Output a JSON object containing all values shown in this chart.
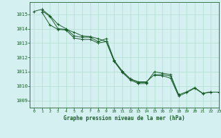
{
  "title": "Graphe pression niveau de la mer (hPa)",
  "background_color": "#d4f0f0",
  "grid_color": "#b0ddd0",
  "line_color": "#1a5c2a",
  "xlim": [
    -0.5,
    23
  ],
  "ylim": [
    1008.5,
    1015.85
  ],
  "yticks": [
    1009,
    1010,
    1011,
    1012,
    1013,
    1014,
    1015
  ],
  "xticks": [
    0,
    1,
    2,
    3,
    4,
    5,
    6,
    7,
    8,
    9,
    10,
    11,
    12,
    13,
    14,
    15,
    16,
    17,
    18,
    19,
    20,
    21,
    22,
    23
  ],
  "series": [
    [
      1015.2,
      1015.35,
      1014.9,
      1014.3,
      1014.0,
      1013.5,
      1013.4,
      1013.4,
      1013.1,
      1013.3,
      1011.8,
      1011.0,
      1010.5,
      1010.3,
      1010.3,
      1010.8,
      1010.8,
      1010.7,
      1009.4,
      1009.6,
      1009.9,
      1009.5,
      1009.6,
      null
    ],
    [
      null,
      1015.25,
      1014.85,
      1014.0,
      1013.95,
      1013.75,
      1013.5,
      1013.45,
      1013.3,
      1013.1,
      1011.75,
      1011.05,
      1010.5,
      1010.25,
      1010.25,
      1011.0,
      1010.9,
      1010.8,
      1009.4,
      null,
      null,
      null,
      null,
      null
    ],
    [
      null,
      1015.15,
      1014.25,
      1013.95,
      1013.9,
      1013.35,
      1013.25,
      1013.25,
      1013.0,
      1013.1,
      1011.7,
      1010.95,
      1010.42,
      1010.18,
      1010.18,
      null,
      null,
      null,
      null,
      null,
      null,
      null,
      null,
      null
    ],
    [
      null,
      null,
      null,
      null,
      null,
      null,
      null,
      null,
      null,
      null,
      null,
      null,
      null,
      null,
      null,
      1010.75,
      1010.72,
      1010.55,
      1009.3,
      1009.55,
      1009.85,
      1009.48,
      1009.58,
      1009.58
    ]
  ]
}
